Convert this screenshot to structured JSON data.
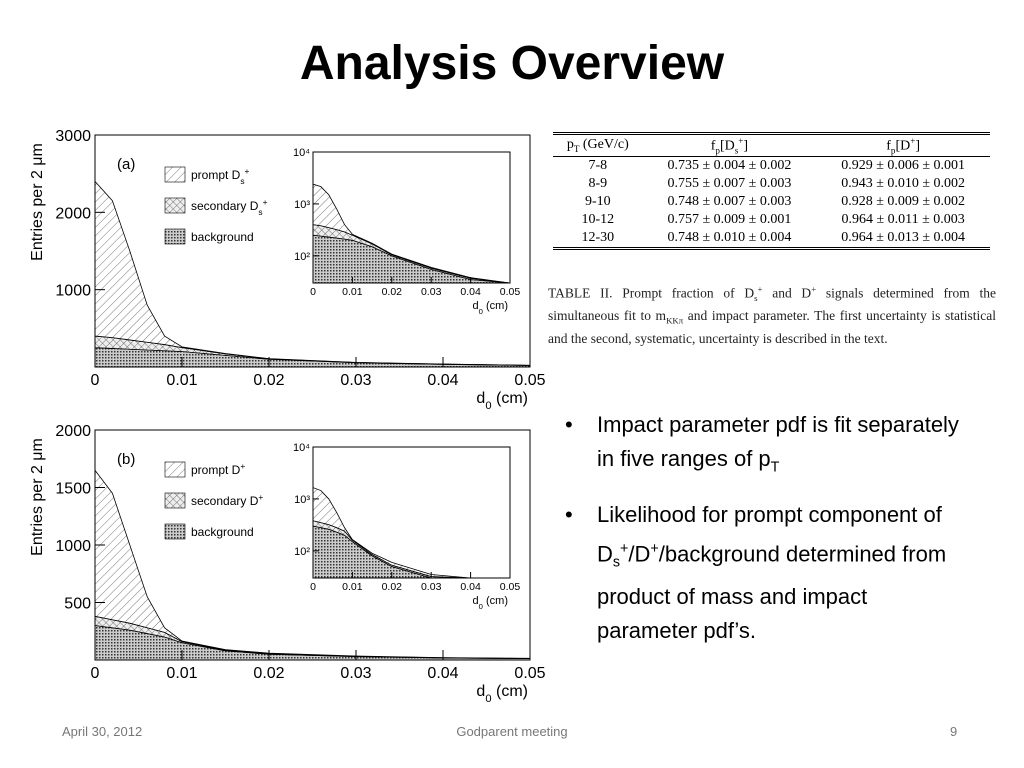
{
  "title": "Analysis Overview",
  "charts": [
    {
      "type": "stacked_area",
      "panel_label": "(a)",
      "y_label": "Entries per 2 μm",
      "x_label": [
        "d",
        {
          "sub": "0"
        },
        "  (cm)"
      ],
      "x": [
        0,
        0.002,
        0.004,
        0.006,
        0.008,
        0.01,
        0.015,
        0.02,
        0.03,
        0.04,
        0.05
      ],
      "xlim": [
        0,
        0.05
      ],
      "xticks": [
        0,
        0.01,
        0.02,
        0.03,
        0.04,
        0.05
      ],
      "ylim": [
        0,
        3000
      ],
      "yticks": [
        1000,
        2000,
        3000
      ],
      "series": [
        {
          "name": [
            "prompt D",
            {
              "sub": "s"
            },
            {
              "sup": "+"
            }
          ],
          "pattern": "hatch",
          "values": [
            2000,
            1770,
            1150,
            480,
            110,
            10,
            5,
            3,
            2,
            1,
            1
          ]
        },
        {
          "name": [
            "secondary D",
            {
              "sub": "s"
            },
            {
              "sup": "+"
            }
          ],
          "pattern": "cross",
          "values": [
            150,
            140,
            120,
            100,
            80,
            50,
            20,
            5,
            3,
            2,
            1
          ]
        },
        {
          "name": [
            "background"
          ],
          "pattern": "dots",
          "values": [
            250,
            240,
            230,
            220,
            210,
            200,
            150,
            100,
            55,
            35,
            20
          ]
        }
      ],
      "inset": {
        "log_y": true,
        "xlim": [
          0,
          0.05
        ],
        "xticks": [
          0,
          0.01,
          0.02,
          0.03,
          0.04,
          0.05
        ],
        "ylim": [
          30,
          10000
        ],
        "yticks": [
          {
            "value": 100,
            "label": "10²"
          },
          {
            "value": 1000,
            "label": "10³"
          },
          {
            "value": 10000,
            "label": "10⁴"
          }
        ],
        "x_label": [
          "d",
          {
            "sub": "0"
          },
          "  (cm)"
        ]
      }
    },
    {
      "type": "stacked_area",
      "panel_label": "(b)",
      "y_label": "Entries per 2 μm",
      "x_label": [
        "d",
        {
          "sub": "0"
        },
        "  (cm)"
      ],
      "x": [
        0,
        0.002,
        0.004,
        0.006,
        0.008,
        0.01,
        0.015,
        0.02,
        0.03,
        0.04,
        0.05
      ],
      "xlim": [
        0,
        0.05
      ],
      "xticks": [
        0,
        0.01,
        0.02,
        0.03,
        0.04,
        0.05
      ],
      "ylim": [
        0,
        2000
      ],
      "yticks": [
        500,
        1000,
        1500,
        2000
      ],
      "series": [
        {
          "name": [
            "prompt D",
            {
              "sup": "+"
            }
          ],
          "pattern": "hatch",
          "values": [
            1270,
            1100,
            680,
            270,
            40,
            5,
            5,
            7,
            3,
            1,
            2
          ]
        },
        {
          "name": [
            "secondary D",
            {
              "sup": "+"
            }
          ],
          "pattern": "cross",
          "values": [
            80,
            70,
            60,
            50,
            40,
            10,
            5,
            3,
            2,
            1,
            1
          ]
        },
        {
          "name": [
            "background"
          ],
          "pattern": "dots",
          "values": [
            300,
            280,
            260,
            230,
            200,
            150,
            80,
            50,
            30,
            18,
            12
          ]
        }
      ],
      "inset": {
        "log_y": true,
        "xlim": [
          0,
          0.05
        ],
        "xticks": [
          0,
          0.01,
          0.02,
          0.03,
          0.04,
          0.05
        ],
        "ylim": [
          30,
          10000
        ],
        "yticks": [
          {
            "value": 100,
            "label": "10²"
          },
          {
            "value": 1000,
            "label": "10³"
          },
          {
            "value": 10000,
            "label": "10⁴"
          }
        ],
        "x_label": [
          "d",
          {
            "sub": "0"
          },
          "  (cm)"
        ]
      }
    }
  ],
  "table": {
    "header": [
      [
        "p",
        {
          "sub": "T"
        },
        " (GeV/c)"
      ],
      [
        "f",
        {
          "sub": "p"
        },
        "[D",
        {
          "sub": "s"
        },
        {
          "sup": "+"
        },
        "]"
      ],
      [
        "f",
        {
          "sub": "p"
        },
        "[D",
        {
          "sup": "+"
        },
        "]"
      ]
    ],
    "rows": [
      [
        "7-8",
        "0.735 ± 0.004 ± 0.002",
        "0.929 ± 0.006 ± 0.001"
      ],
      [
        "8-9",
        "0.755 ± 0.007 ± 0.003",
        "0.943 ± 0.010 ± 0.002"
      ],
      [
        "9-10",
        "0.748 ± 0.007 ± 0.003",
        "0.928 ± 0.009 ± 0.002"
      ],
      [
        "10-12",
        "0.757 ± 0.009 ± 0.001",
        "0.964 ± 0.011 ± 0.003"
      ],
      [
        "12-30",
        "0.748 ± 0.010 ± 0.004",
        "0.964 ± 0.013 ± 0.004"
      ]
    ],
    "caption": [
      "TABLE II. Prompt fraction of D",
      {
        "sub": "s"
      },
      {
        "sup": "+"
      },
      " and D",
      {
        "sup": "+"
      },
      " signals determined from the simultaneous fit to m",
      {
        "sub": "KKπ"
      },
      " and impact parameter. The first uncertainty is statistical and the second, systematic, uncertainty is described in the text."
    ]
  },
  "bullets": [
    [
      "Impact parameter pdf is fit separately in five ranges of p",
      {
        "sub": "T"
      }
    ],
    [
      "Likelihood for prompt component of D",
      {
        "sub": "s"
      },
      {
        "sup": "+"
      },
      "/D",
      {
        "sup": "+"
      },
      "/background determined from product of mass and impact parameter pdf’s."
    ]
  ],
  "footer": {
    "date": "April 30, 2012",
    "event": "Godparent meeting",
    "page": "9"
  }
}
